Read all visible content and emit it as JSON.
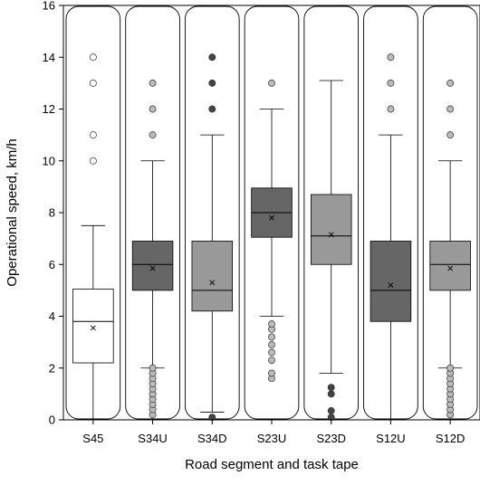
{
  "chart_data": {
    "type": "box",
    "xlabel": "Road segment and task tape",
    "ylabel": "Operational speed, km/h",
    "ylim": [
      0,
      16
    ],
    "yticks": [
      0,
      2,
      4,
      6,
      8,
      10,
      12,
      14,
      16
    ],
    "grid": false,
    "categories": [
      "S45",
      "S34U",
      "S34D",
      "S23U",
      "S23D",
      "S12U",
      "S12D"
    ],
    "boxes": [
      {
        "category": "S45",
        "fill": "#ffffff",
        "whisker_low": 0,
        "q1": 2.2,
        "median": 3.8,
        "mean": 3.55,
        "q3": 5.05,
        "whisker_high": 7.5,
        "outliers_high": [
          10,
          11,
          13,
          14
        ],
        "outliers_low": [],
        "outlier_color": "#ffffff"
      },
      {
        "category": "S34U",
        "fill": "#666666",
        "whisker_low": 2,
        "q1": 5.0,
        "median": 6.0,
        "mean": 5.85,
        "q3": 6.9,
        "whisker_high": 10,
        "outliers_high": [
          11,
          12,
          13
        ],
        "outliers_low": [
          0.2,
          0.4,
          0.6,
          0.8,
          1.0,
          1.2,
          1.4,
          1.6,
          1.8,
          2.0
        ],
        "outlier_color": "#bbbbbb"
      },
      {
        "category": "S34D",
        "fill": "#999999",
        "whisker_low": 0.3,
        "q1": 4.2,
        "median": 5.0,
        "mean": 5.3,
        "q3": 6.9,
        "whisker_high": 11,
        "outliers_high": [
          12,
          13,
          14
        ],
        "outliers_low": [
          0.1
        ],
        "outlier_color": "#444444"
      },
      {
        "category": "S23U",
        "fill": "#666666",
        "whisker_low": 4,
        "q1": 7.05,
        "median": 8.0,
        "mean": 7.8,
        "q3": 8.95,
        "whisker_high": 12,
        "outliers_high": [
          13
        ],
        "outliers_low": [
          1.6,
          1.8,
          2.3,
          2.6,
          2.9,
          3.2,
          3.5,
          3.7
        ],
        "outlier_color": "#bbbbbb"
      },
      {
        "category": "S23D",
        "fill": "#999999",
        "whisker_low": 1.8,
        "q1": 6.0,
        "median": 7.1,
        "mean": 7.15,
        "q3": 8.7,
        "whisker_high": 13.1,
        "outliers_high": [],
        "outliers_low": [
          0.1,
          0.35,
          1.0,
          1.25
        ],
        "outlier_color": "#444444"
      },
      {
        "category": "S12U",
        "fill": "#666666",
        "whisker_low": 0,
        "q1": 3.8,
        "median": 5.0,
        "mean": 5.2,
        "q3": 6.9,
        "whisker_high": 11,
        "outliers_high": [
          12,
          13,
          14
        ],
        "outliers_low": [],
        "outlier_color": "#bbbbbb"
      },
      {
        "category": "S12D",
        "fill": "#999999",
        "whisker_low": 2,
        "q1": 5.0,
        "median": 6.0,
        "mean": 5.85,
        "q3": 6.9,
        "whisker_high": 10,
        "outliers_high": [
          11,
          12,
          13
        ],
        "outliers_low": [
          0.2,
          0.4,
          0.6,
          0.8,
          1.0,
          1.2,
          1.4,
          1.6,
          1.8,
          2.0
        ],
        "outlier_color": "#bbbbbb"
      }
    ]
  }
}
